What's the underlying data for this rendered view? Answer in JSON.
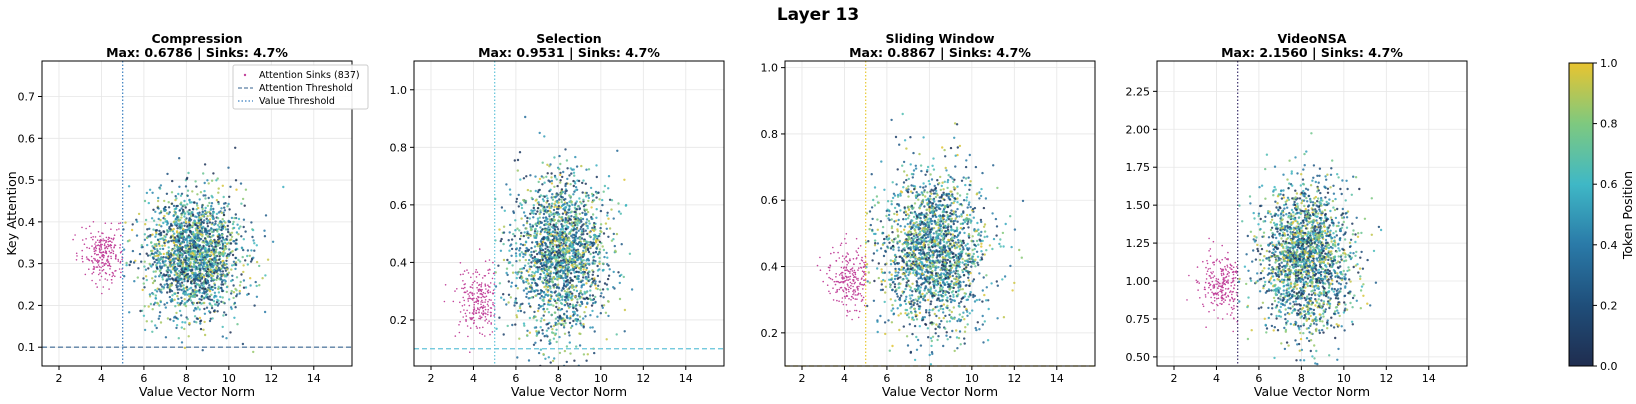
{
  "figure": {
    "suptitle": "Layer 13"
  },
  "colorbar": {
    "label": "Token Position",
    "ticks": [
      "0.0",
      "0.2",
      "0.4",
      "0.6",
      "0.8",
      "1.0"
    ],
    "colormap": "viridis-like"
  },
  "legend": {
    "panel": 0,
    "placement": "top-right",
    "entries": [
      "Attention Sinks (837)",
      "Attention Threshold",
      "Value Threshold"
    ]
  },
  "colors": {
    "sink": "#c2449b",
    "grid": "#e6e6e6"
  },
  "chart_data": [
    {
      "type": "scatter",
      "title": "Compression",
      "subtitle": "Max: 0.6786 | Sinks: 4.7%",
      "xlabel": "Value Vector Norm",
      "ylabel": "Key Attention",
      "xlim": [
        1.2,
        15.8
      ],
      "ylim": [
        0.055,
        0.785
      ],
      "xticks": [
        "2",
        "4",
        "6",
        "8",
        "10",
        "12",
        "14"
      ],
      "xtick_values": [
        2,
        4,
        6,
        8,
        10,
        12,
        14
      ],
      "yticks": [
        "0.1",
        "0.2",
        "0.3",
        "0.4",
        "0.5",
        "0.6",
        "0.7"
      ],
      "ytick_values": [
        0.1,
        0.2,
        0.3,
        0.4,
        0.5,
        0.6,
        0.7
      ],
      "value_threshold": 5.0,
      "attention_threshold": 0.1,
      "attention_threshold_color": "#5a7fa3",
      "value_threshold_color": "#3a7fc0",
      "tokens": {
        "center": [
          8.4,
          0.32
        ],
        "spread": [
          1.15,
          0.075
        ],
        "count": 2000,
        "xmin": 5.0
      },
      "sinks": {
        "center": [
          4.1,
          0.325
        ],
        "spread": [
          0.5,
          0.035
        ],
        "count": 240,
        "xmax": 5.0
      }
    },
    {
      "type": "scatter",
      "title": "Selection",
      "subtitle": "Max: 0.9531 | Sinks: 4.7%",
      "xlabel": "Value Vector Norm",
      "ylabel": "",
      "xlim": [
        1.2,
        15.8
      ],
      "ylim": [
        0.04,
        1.1
      ],
      "xticks": [
        "2",
        "4",
        "6",
        "8",
        "10",
        "12",
        "14"
      ],
      "xtick_values": [
        2,
        4,
        6,
        8,
        10,
        12,
        14
      ],
      "yticks": [
        "0.2",
        "0.4",
        "0.6",
        "0.8",
        "1.0"
      ],
      "ytick_values": [
        0.2,
        0.4,
        0.6,
        0.8,
        1.0
      ],
      "value_threshold": 5.0,
      "attention_threshold": 0.1,
      "attention_threshold_color": "#62c3d9",
      "value_threshold_color": "#62c3d9",
      "tokens": {
        "center": [
          8.1,
          0.43
        ],
        "spread": [
          1.1,
          0.14
        ],
        "count": 2000,
        "xmin": 5.0
      },
      "sinks": {
        "center": [
          4.2,
          0.27
        ],
        "spread": [
          0.5,
          0.06
        ],
        "count": 240,
        "xmax": 5.0
      }
    },
    {
      "type": "scatter",
      "title": "Sliding Window",
      "subtitle": "Max: 0.8867 | Sinks: 4.7%",
      "xlabel": "Value Vector Norm",
      "ylabel": "",
      "xlim": [
        1.2,
        15.8
      ],
      "ylim": [
        0.1,
        1.02
      ],
      "xticks": [
        "2",
        "4",
        "6",
        "8",
        "10",
        "12",
        "14"
      ],
      "xtick_values": [
        2,
        4,
        6,
        8,
        10,
        12,
        14
      ],
      "yticks": [
        "0.2",
        "0.4",
        "0.6",
        "0.8",
        "1.0"
      ],
      "ytick_values": [
        0.2,
        0.4,
        0.6,
        0.8,
        1.0
      ],
      "value_threshold": 5.0,
      "attention_threshold": 0.1,
      "attention_threshold_color": "#e8c832",
      "value_threshold_color": "#e8c832",
      "tokens": {
        "center": [
          8.2,
          0.45
        ],
        "spread": [
          1.2,
          0.12
        ],
        "count": 2000,
        "xmin": 5.0
      },
      "sinks": {
        "center": [
          4.2,
          0.36
        ],
        "spread": [
          0.5,
          0.05
        ],
        "count": 240,
        "xmax": 5.0
      }
    },
    {
      "type": "scatter",
      "title": "VideoNSA",
      "subtitle": "Max: 2.1560 | Sinks: 4.7%",
      "xlabel": "Value Vector Norm",
      "ylabel": "",
      "xlim": [
        1.2,
        15.8
      ],
      "ylim": [
        0.44,
        2.45
      ],
      "xticks": [
        "2",
        "4",
        "6",
        "8",
        "10",
        "12",
        "14"
      ],
      "xtick_values": [
        2,
        4,
        6,
        8,
        10,
        12,
        14
      ],
      "yticks": [
        "0.50",
        "0.75",
        "1.00",
        "1.25",
        "1.50",
        "1.75",
        "2.00",
        "2.25"
      ],
      "ytick_values": [
        0.5,
        0.75,
        1.0,
        1.25,
        1.5,
        1.75,
        2.0,
        2.25
      ],
      "value_threshold": 5.0,
      "attention_threshold": null,
      "attention_threshold_color": "#3b2f6b",
      "value_threshold_color": "#3b2f6b",
      "tokens": {
        "center": [
          8.2,
          1.15
        ],
        "spread": [
          1.1,
          0.24
        ],
        "count": 2000,
        "xmin": 5.0
      },
      "sinks": {
        "center": [
          4.2,
          0.98
        ],
        "spread": [
          0.5,
          0.1
        ],
        "count": 240,
        "xmax": 5.0
      }
    }
  ]
}
